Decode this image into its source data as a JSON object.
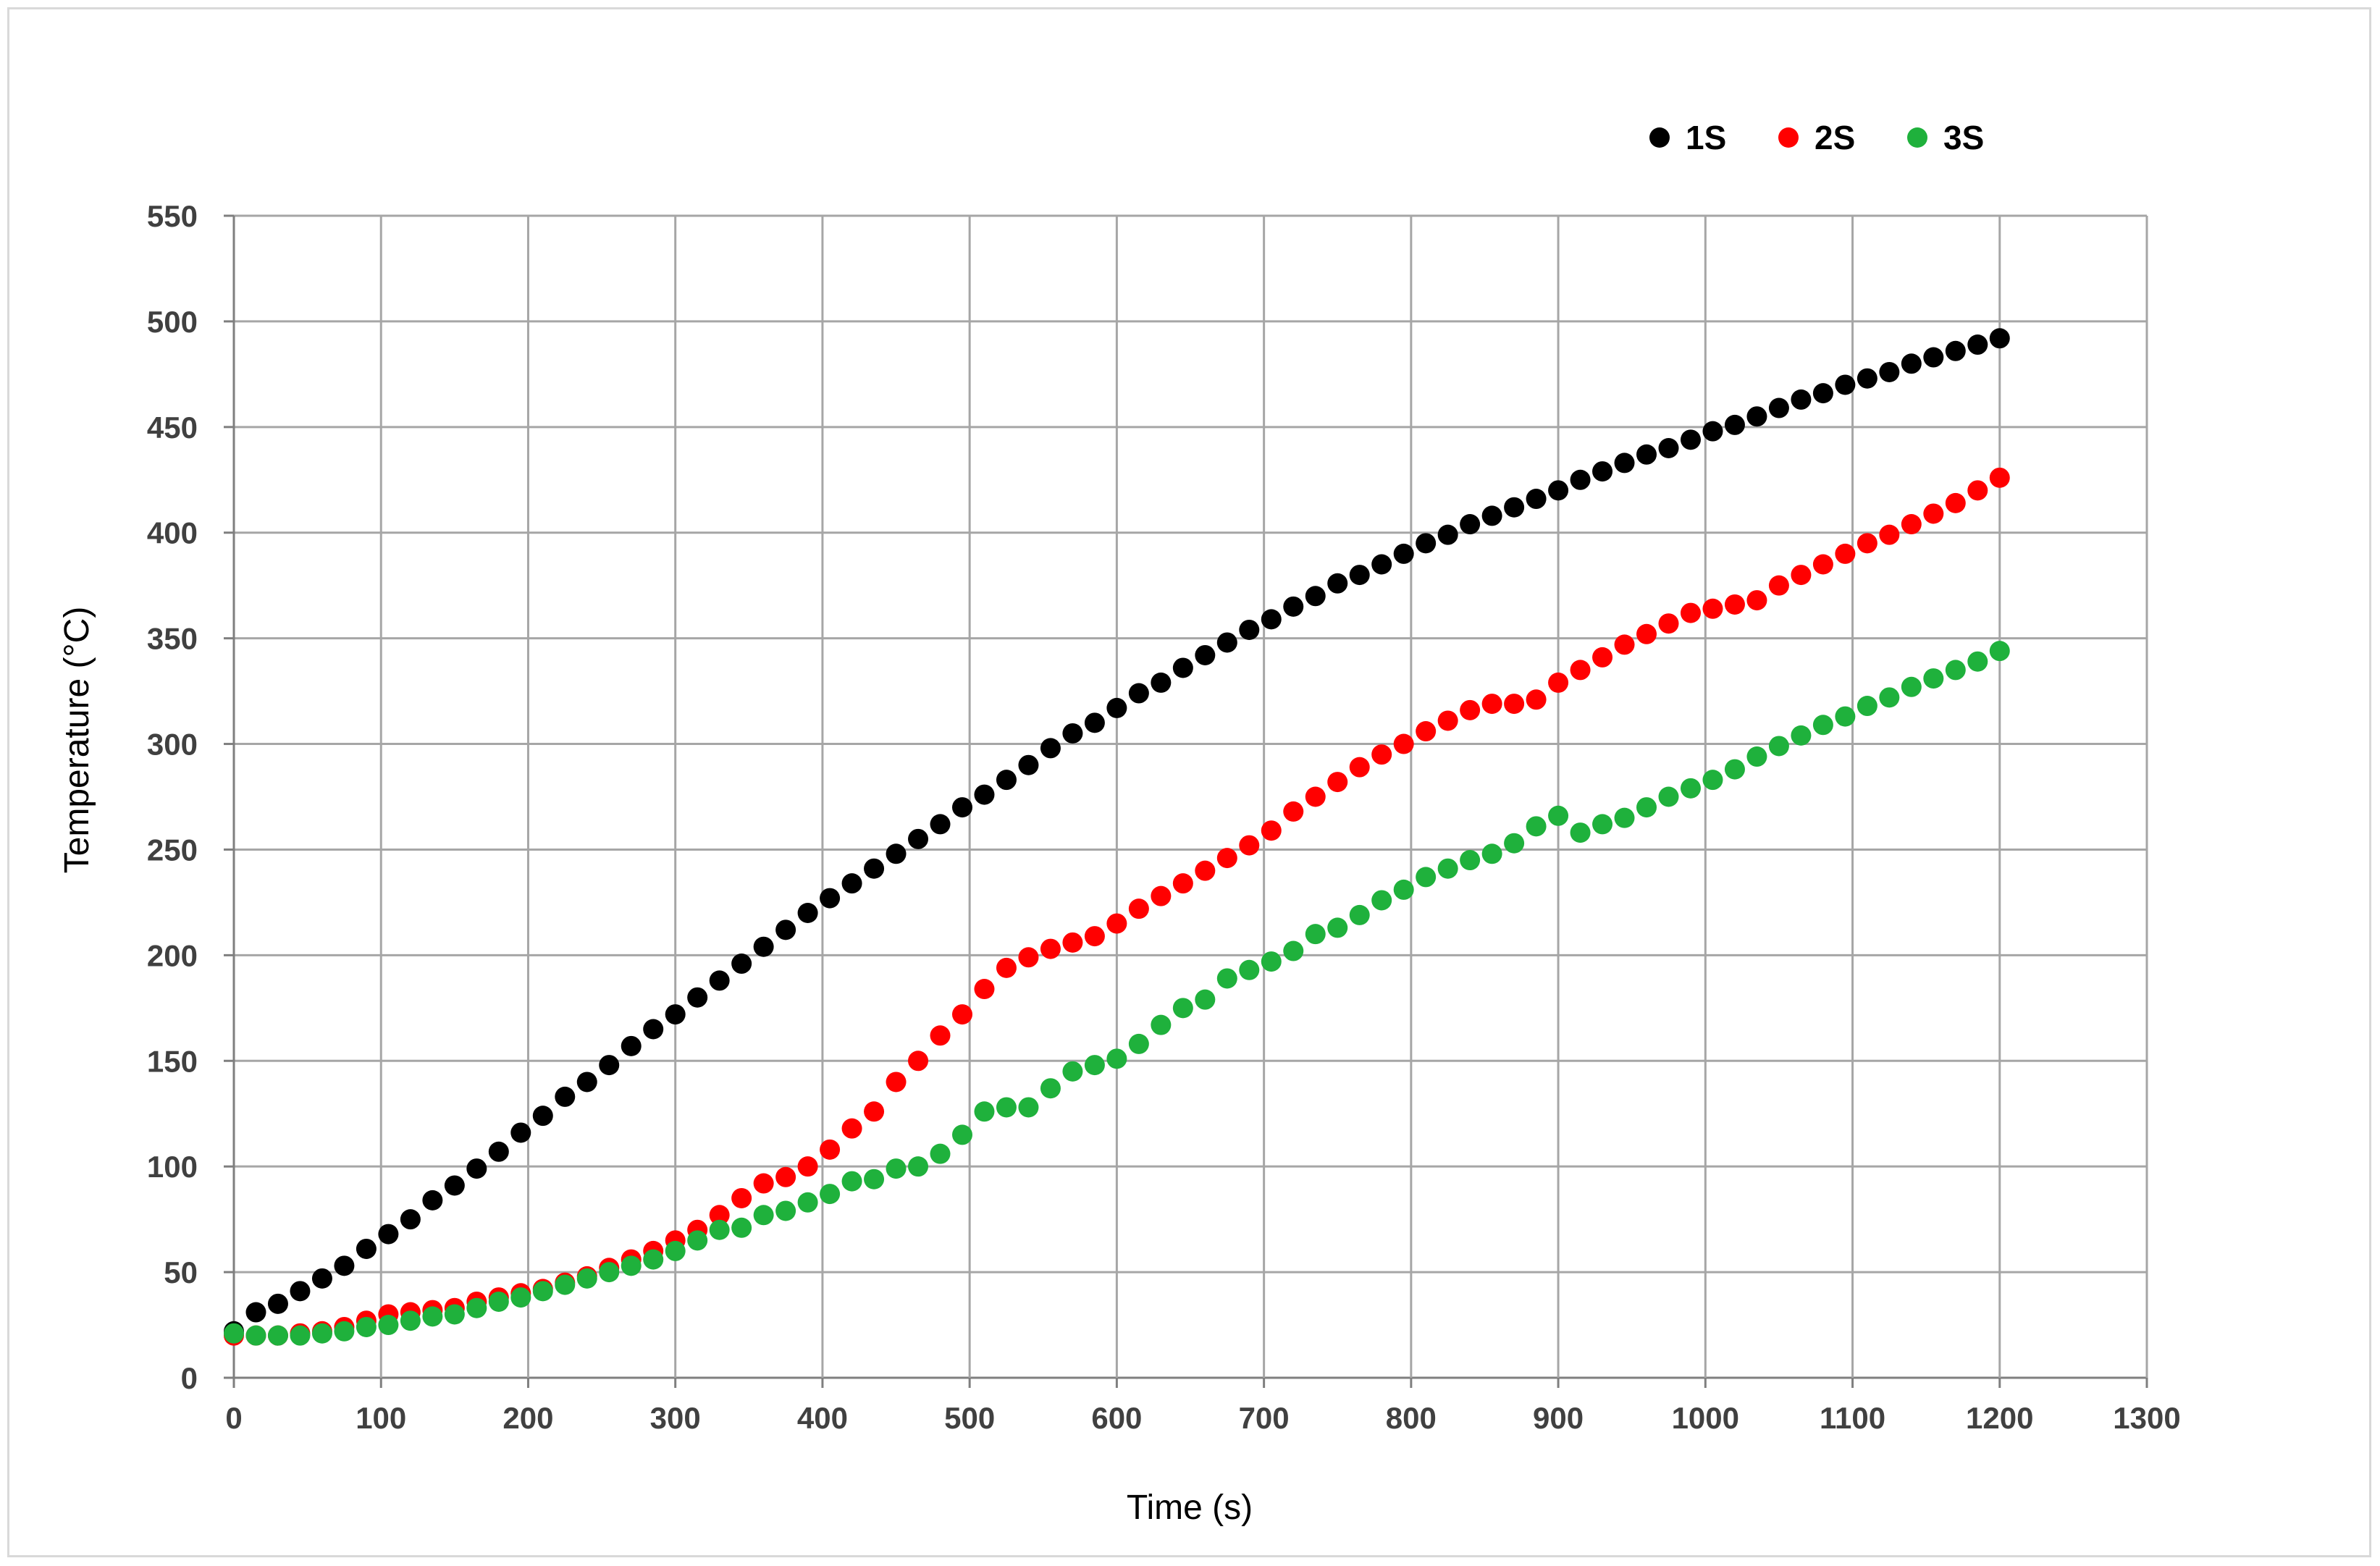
{
  "chart_data": {
    "type": "scatter",
    "xlabel": "Time (s)",
    "ylabel": "Temperature  (°C)",
    "xlim": [
      0,
      1300
    ],
    "ylim": [
      0,
      550
    ],
    "xticks": [
      0,
      100,
      200,
      300,
      400,
      500,
      600,
      700,
      800,
      900,
      1000,
      1100,
      1200,
      1300
    ],
    "yticks": [
      0,
      50,
      100,
      150,
      200,
      250,
      300,
      350,
      400,
      450,
      500,
      550
    ],
    "grid": true,
    "legend_position": "top-right",
    "x": [
      0,
      15,
      30,
      45,
      60,
      75,
      90,
      105,
      120,
      135,
      150,
      165,
      180,
      195,
      210,
      225,
      240,
      255,
      270,
      285,
      300,
      315,
      330,
      345,
      360,
      375,
      390,
      405,
      420,
      435,
      450,
      465,
      480,
      495,
      510,
      525,
      540,
      555,
      570,
      585,
      600,
      615,
      630,
      645,
      660,
      675,
      690,
      705,
      720,
      735,
      750,
      765,
      780,
      795,
      810,
      825,
      840,
      855,
      870,
      885,
      900,
      915,
      930,
      945,
      960,
      975,
      990,
      1005,
      1020,
      1035,
      1050,
      1065,
      1080,
      1095,
      1110,
      1125,
      1140,
      1155,
      1170,
      1185,
      1200
    ],
    "series": [
      {
        "name": "1S",
        "color": "#000000",
        "values": [
          22,
          31,
          35,
          41,
          47,
          53,
          61,
          68,
          75,
          84,
          91,
          99,
          107,
          116,
          124,
          133,
          140,
          148,
          157,
          165,
          172,
          180,
          188,
          196,
          204,
          212,
          220,
          227,
          234,
          241,
          248,
          255,
          262,
          270,
          276,
          283,
          290,
          298,
          305,
          310,
          317,
          324,
          329,
          336,
          342,
          348,
          354,
          359,
          365,
          370,
          376,
          380,
          385,
          390,
          395,
          399,
          404,
          408,
          412,
          416,
          420,
          425,
          429,
          433,
          437,
          440,
          444,
          448,
          451,
          455,
          459,
          463,
          466,
          470,
          473,
          476,
          480,
          483,
          486,
          489,
          492
        ]
      },
      {
        "name": "2S",
        "color": "#ff0000",
        "values": [
          20,
          20,
          20,
          21,
          22,
          24,
          27,
          30,
          31,
          32,
          33,
          36,
          38,
          40,
          42,
          45,
          48,
          52,
          56,
          60,
          65,
          70,
          77,
          85,
          92,
          95,
          100,
          108,
          118,
          126,
          140,
          150,
          162,
          172,
          184,
          194,
          199,
          203,
          206,
          209,
          215,
          222,
          228,
          234,
          240,
          246,
          252,
          259,
          268,
          275,
          282,
          289,
          295,
          300,
          306,
          311,
          316,
          319,
          319,
          321,
          329,
          335,
          341,
          347,
          352,
          357,
          362,
          364,
          366,
          368,
          375,
          380,
          385,
          390,
          395,
          399,
          404,
          409,
          414,
          420,
          426
        ]
      },
      {
        "name": "3S",
        "color": "#1fb13c",
        "values": [
          21,
          20,
          20,
          20,
          21,
          22,
          24,
          25,
          27,
          29,
          30,
          33,
          36,
          38,
          41,
          44,
          47,
          50,
          53,
          56,
          60,
          65,
          70,
          71,
          77,
          79,
          83,
          87,
          93,
          94,
          99,
          100,
          106,
          115,
          126,
          128,
          128,
          137,
          145,
          148,
          151,
          158,
          167,
          175,
          179,
          189,
          193,
          197,
          202,
          210,
          213,
          219,
          226,
          231,
          237,
          241,
          245,
          248,
          253,
          261,
          266,
          258,
          262,
          265,
          270,
          275,
          279,
          283,
          288,
          294,
          299,
          304,
          309,
          313,
          318,
          322,
          327,
          331,
          335,
          339,
          344
        ]
      }
    ]
  }
}
